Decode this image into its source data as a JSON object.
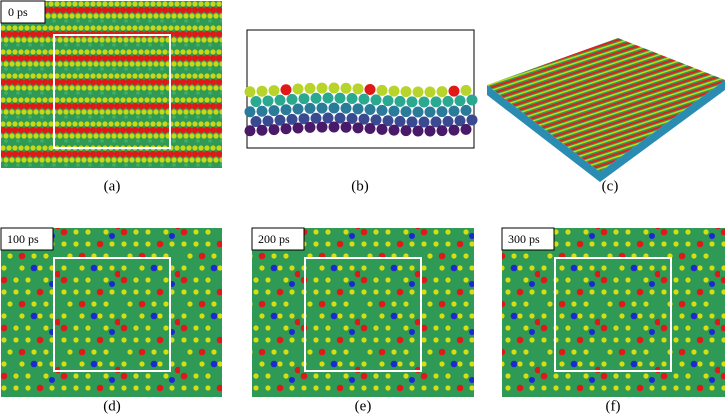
{
  "panels": [
    {
      "label": "(a)",
      "time": "0 ps"
    },
    {
      "label": "(b)"
    },
    {
      "label": "(c)"
    },
    {
      "label": "(d)",
      "time": "100 ps"
    },
    {
      "label": "(e)",
      "time": "200 ps"
    },
    {
      "label": "(f)",
      "time": "300 ps"
    }
  ]
}
